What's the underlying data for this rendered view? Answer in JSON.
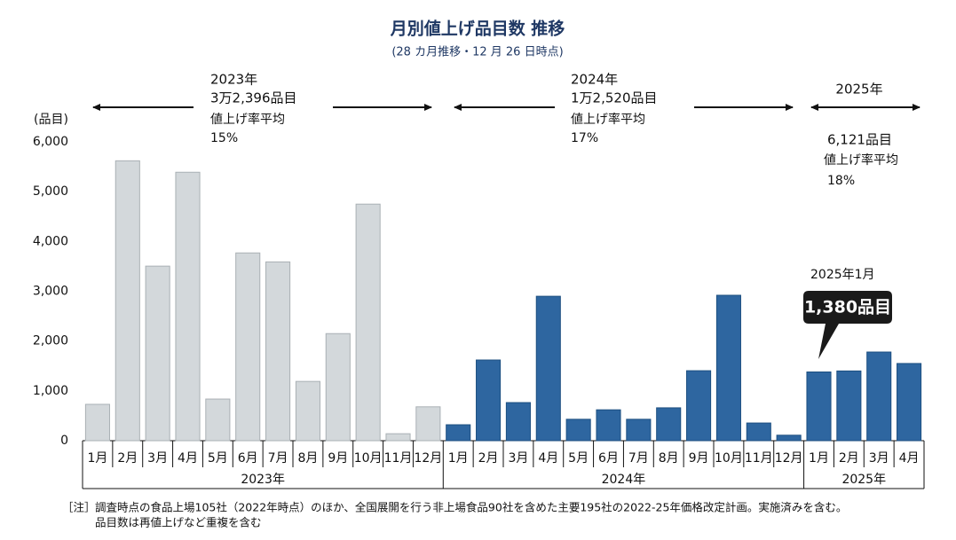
{
  "chart_data": {
    "type": "bar",
    "title": "月別値上げ品目数 推移",
    "subtitle": "(28 カ月推移・12 月 26 日時点)",
    "y_label": "(品目)",
    "ylim": [
      0,
      6000
    ],
    "yticks": [
      0,
      {
        "value": 1000,
        "label": "1,000"
      },
      {
        "value": 2000,
        "label": "2,000"
      },
      {
        "value": 3000,
        "label": "3,000"
      },
      {
        "value": 4000,
        "label": "4,000"
      },
      {
        "value": 5000,
        "label": "5,000"
      },
      {
        "value": 6000,
        "label": "6,000"
      }
    ],
    "groups": [
      {
        "name": "2023年",
        "color": "#d3d8db",
        "categories": [
          "1月",
          "2月",
          "3月",
          "4月",
          "5月",
          "6月",
          "7月",
          "8月",
          "9月",
          "10月",
          "11月",
          "12月"
        ],
        "values": [
          730,
          5620,
          3505,
          5390,
          836,
          3770,
          3590,
          1190,
          2150,
          4750,
          140,
          680
        ],
        "annotation": {
          "label": "2023年",
          "total": "3万2,396品目",
          "rate_label": "値上げ率平均",
          "rate": "15%"
        }
      },
      {
        "name": "2024年",
        "color": "#2e66a0",
        "categories": [
          "1月",
          "2月",
          "3月",
          "4月",
          "5月",
          "6月",
          "7月",
          "8月",
          "9月",
          "10月",
          "11月",
          "12月"
        ],
        "values": [
          320,
          1620,
          765,
          2900,
          430,
          620,
          430,
          660,
          1405,
          2920,
          355,
          110
        ],
        "annotation": {
          "label": "2024年",
          "total": "1万2,520品目",
          "rate_label": "値上げ率平均",
          "rate": "17%"
        }
      },
      {
        "name": "2025年",
        "color": "#2e66a0",
        "categories": [
          "1月",
          "2月",
          "3月",
          "4月"
        ],
        "values": [
          1380,
          1400,
          1780,
          1550
        ],
        "annotation": {
          "label": "2025年",
          "total": "6,121品目",
          "rate_label": "値上げ率平均",
          "rate": "18%"
        }
      }
    ],
    "callout": {
      "title": "2025年1月",
      "label": "1,380品目"
    },
    "footnote": {
      "marker": "［注］",
      "lines": [
        "調査時点の食品上場105社（2022年時点）のほか、全国展開を行う非上場食品90社を含めた主要195社の2022-25年価格改定計画。実施済みを含む。",
        "品目数は再値上げなど重複を含む"
      ]
    }
  }
}
